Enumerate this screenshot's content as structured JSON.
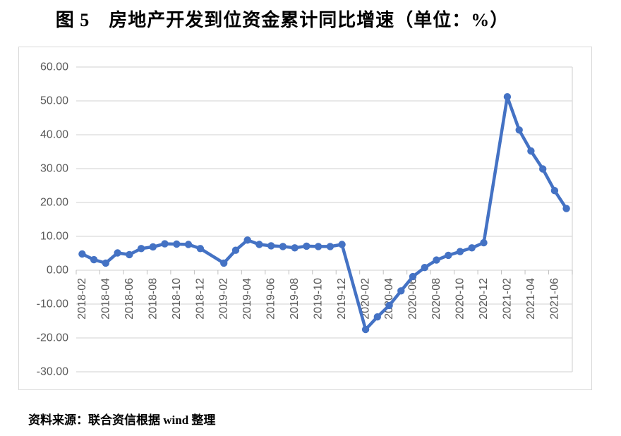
{
  "page": {
    "title": "图 5　房地产开发到位资金累计同比增速（单位：%）",
    "source_note": "资料来源：联合资信根据 wind 整理"
  },
  "chart_data": {
    "type": "line",
    "title": "图 5　房地产开发到位资金累计同比增速（单位：%）",
    "unit": "%",
    "legend": "none",
    "grid": true,
    "line_color": "#4472C4",
    "grid_color": "#d9d9d9",
    "tick_color": "#bfbfbf",
    "axis_label_color": "#595959",
    "ylim": [
      -30,
      60
    ],
    "y_tick_step": 10,
    "y_tick_labels": [
      "60.00",
      "50.00",
      "40.00",
      "30.00",
      "20.00",
      "10.00",
      "0.00",
      "-10.00",
      "-20.00",
      "-30.00"
    ],
    "x_tick_every": 2,
    "categories": [
      "2018-02",
      "2018-03",
      "2018-04",
      "2018-05",
      "2018-06",
      "2018-07",
      "2018-08",
      "2018-09",
      "2018-10",
      "2018-11",
      "2018-12",
      "2019-01",
      "2019-02",
      "2019-03",
      "2019-04",
      "2019-05",
      "2019-06",
      "2019-07",
      "2019-08",
      "2019-09",
      "2019-10",
      "2019-11",
      "2019-12",
      "2020-01",
      "2020-02",
      "2020-03",
      "2020-04",
      "2020-05",
      "2020-06",
      "2020-07",
      "2020-08",
      "2020-09",
      "2020-10",
      "2020-11",
      "2020-12",
      "2021-01",
      "2021-02",
      "2021-03",
      "2021-04",
      "2021-05",
      "2021-06",
      "2021-07"
    ],
    "values": [
      4.8,
      3.1,
      2.1,
      5.1,
      4.6,
      6.4,
      6.9,
      7.8,
      7.7,
      7.6,
      6.4,
      null,
      2.1,
      5.9,
      8.9,
      7.6,
      7.2,
      7.0,
      6.6,
      7.1,
      7.0,
      7.0,
      7.6,
      null,
      -17.5,
      -13.8,
      -10.4,
      -6.1,
      -1.9,
      0.8,
      3.0,
      4.4,
      5.5,
      6.6,
      8.1,
      null,
      51.2,
      41.4,
      35.2,
      29.9,
      23.5,
      18.2
    ]
  }
}
